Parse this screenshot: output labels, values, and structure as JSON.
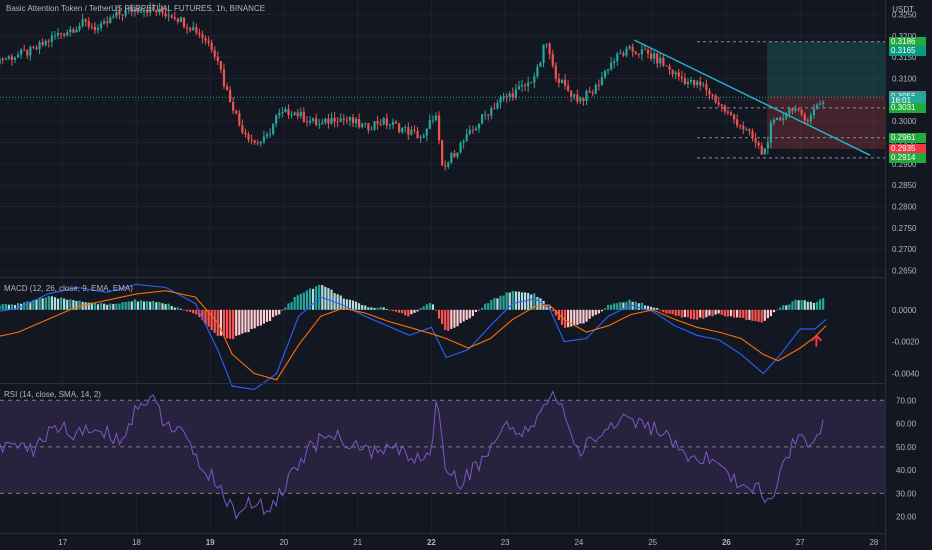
{
  "header": {
    "title": "Basic Attention Token / TetherUS PERPETUAL FUTURES, 1h, BINANCE",
    "currency": "USDT"
  },
  "colors": {
    "background": "#131722",
    "up": "#26a69a",
    "down": "#ef5350",
    "trendline": "#22b5d0",
    "macd_line": "#2962ff",
    "signal_line": "#ff6d00",
    "rsi_line": "#7e57c2",
    "rsi_band": "#2a2340",
    "grid": "#1e222d"
  },
  "price_tags": [
    {
      "label": "0.3186",
      "value": 0.3186,
      "color": "#22ab3b"
    },
    {
      "label": "0.3165",
      "value": 0.3165,
      "color": "#089981"
    },
    {
      "label": "0.3059",
      "value": 0.3059,
      "color": "#787b86"
    },
    {
      "label": "0.3056",
      "value": 0.3056,
      "color": "#26a69a"
    },
    {
      "label": "16:01",
      "value": 0.3047,
      "color": "#26a69a"
    },
    {
      "label": "0.3031",
      "value": 0.3031,
      "color": "#22ab3b"
    },
    {
      "label": "0.2961",
      "value": 0.2961,
      "color": "#22ab3b"
    },
    {
      "label": "0.2935",
      "value": 0.2935,
      "color": "#f23645"
    },
    {
      "label": "0.2914",
      "value": 0.2914,
      "color": "#22ab3b"
    }
  ],
  "chart_data": [
    {
      "type": "candlestick",
      "title": "Basic Attention Token / TetherUS PERPETUAL FUTURES, 1h, BINANCE",
      "y_ticks": [
        "0.3250",
        "0.3200",
        "0.3150",
        "0.3100",
        "0.3050",
        "0.3000",
        "0.2950",
        "0.2900",
        "0.2850",
        "0.2800",
        "0.2750",
        "0.2700",
        "0.2650"
      ],
      "ylim": [
        0.2635,
        0.3265
      ],
      "x_ticks": [
        "17",
        "18",
        "19",
        "20",
        "21",
        "22",
        "23",
        "24",
        "25",
        "26",
        "27",
        "28"
      ],
      "xlim": [
        16.15,
        28.15
      ],
      "close_path": [
        [
          16.0,
          0.314
        ],
        [
          16.3,
          0.315
        ],
        [
          16.6,
          0.3165
        ],
        [
          16.9,
          0.32
        ],
        [
          17.1,
          0.3215
        ],
        [
          17.3,
          0.323
        ],
        [
          17.5,
          0.3215
        ],
        [
          17.7,
          0.3245
        ],
        [
          17.9,
          0.326
        ],
        [
          18.1,
          0.3265
        ],
        [
          18.3,
          0.3255
        ],
        [
          18.5,
          0.325
        ],
        [
          18.65,
          0.323
        ],
        [
          18.8,
          0.3215
        ],
        [
          19.0,
          0.318
        ],
        [
          19.1,
          0.315
        ],
        [
          19.2,
          0.308
        ],
        [
          19.3,
          0.304
        ],
        [
          19.4,
          0.299
        ],
        [
          19.6,
          0.295
        ],
        [
          19.75,
          0.2955
        ],
        [
          19.9,
          0.301
        ],
        [
          20.1,
          0.3025
        ],
        [
          20.3,
          0.3005
        ],
        [
          20.5,
          0.299
        ],
        [
          20.7,
          0.301
        ],
        [
          20.9,
          0.3
        ],
        [
          21.1,
          0.2985
        ],
        [
          21.3,
          0.3
        ],
        [
          21.5,
          0.299
        ],
        [
          21.7,
          0.2975
        ],
        [
          21.9,
          0.296
        ],
        [
          22.05,
          0.3025
        ],
        [
          22.15,
          0.288
        ],
        [
          22.3,
          0.2925
        ],
        [
          22.5,
          0.2965
        ],
        [
          22.7,
          0.301
        ],
        [
          22.9,
          0.3045
        ],
        [
          23.1,
          0.3065
        ],
        [
          23.3,
          0.3085
        ],
        [
          23.45,
          0.312
        ],
        [
          23.55,
          0.319
        ],
        [
          23.65,
          0.312
        ],
        [
          23.8,
          0.308
        ],
        [
          24.0,
          0.305
        ],
        [
          24.2,
          0.307
        ],
        [
          24.4,
          0.313
        ],
        [
          24.55,
          0.3155
        ],
        [
          24.7,
          0.3165
        ],
        [
          24.9,
          0.316
        ],
        [
          25.1,
          0.314
        ],
        [
          25.3,
          0.311
        ],
        [
          25.5,
          0.309
        ],
        [
          25.7,
          0.308
        ],
        [
          25.85,
          0.305
        ],
        [
          26.0,
          0.302
        ],
        [
          26.2,
          0.299
        ],
        [
          26.35,
          0.296
        ],
        [
          26.5,
          0.292
        ],
        [
          26.6,
          0.2985
        ],
        [
          26.75,
          0.301
        ],
        [
          26.9,
          0.3035
        ],
        [
          27.05,
          0.3
        ],
        [
          27.15,
          0.302
        ],
        [
          27.25,
          0.304
        ],
        [
          27.35,
          0.3056
        ]
      ],
      "trendline": [
        [
          24.75,
          0.319
        ],
        [
          27.95,
          0.292
        ]
      ],
      "position": {
        "entry": 0.3059,
        "target": 0.3186,
        "stop": 0.2935,
        "x_start": 26.55,
        "x_end": 28.15
      },
      "dashed_levels": [
        0.3186,
        0.3031,
        0.2961,
        0.2914
      ]
    },
    {
      "type": "bar",
      "title": "MACD (12, 26, close, 9, EMA, EMA)",
      "y_ticks": [
        "0.0000",
        "-0.0020",
        "-0.0040"
      ],
      "ylim": [
        -0.0046,
        0.002
      ],
      "histogram_path": [
        [
          16.0,
          0.0002
        ],
        [
          16.4,
          0.0004
        ],
        [
          16.8,
          0.0008
        ],
        [
          17.2,
          0.0006
        ],
        [
          17.6,
          0.0003
        ],
        [
          18.0,
          0.0006
        ],
        [
          18.4,
          0.0004
        ],
        [
          18.8,
          -0.0003
        ],
        [
          19.1,
          -0.0016
        ],
        [
          19.3,
          -0.0018
        ],
        [
          19.6,
          -0.0012
        ],
        [
          19.9,
          -0.0004
        ],
        [
          20.2,
          0.001
        ],
        [
          20.5,
          0.0016
        ],
        [
          20.8,
          0.0008
        ],
        [
          21.1,
          0.0002
        ],
        [
          21.4,
          0.0001
        ],
        [
          21.7,
          -0.0004
        ],
        [
          22.0,
          0.0005
        ],
        [
          22.2,
          -0.0014
        ],
        [
          22.5,
          -0.0006
        ],
        [
          22.8,
          0.0006
        ],
        [
          23.1,
          0.0012
        ],
        [
          23.4,
          0.001
        ],
        [
          23.6,
          0.0002
        ],
        [
          23.8,
          -0.0012
        ],
        [
          24.1,
          -0.0008
        ],
        [
          24.4,
          0.0003
        ],
        [
          24.7,
          0.0006
        ],
        [
          25.0,
          0.0002
        ],
        [
          25.3,
          -0.0004
        ],
        [
          25.6,
          -0.0006
        ],
        [
          25.9,
          -0.0003
        ],
        [
          26.2,
          -0.0005
        ],
        [
          26.5,
          -0.0008
        ],
        [
          26.7,
          0.0001
        ],
        [
          27.0,
          0.0007
        ],
        [
          27.2,
          0.0004
        ],
        [
          27.35,
          0.0009
        ]
      ],
      "macd_path": [
        [
          16.0,
          -0.0002
        ],
        [
          16.4,
          0.0001
        ],
        [
          16.8,
          0.001
        ],
        [
          17.2,
          0.0014
        ],
        [
          17.6,
          0.0011
        ],
        [
          18.0,
          0.0016
        ],
        [
          18.4,
          0.0014
        ],
        [
          18.8,
          0.0004
        ],
        [
          19.1,
          -0.0025
        ],
        [
          19.3,
          -0.0048
        ],
        [
          19.6,
          -0.005
        ],
        [
          19.9,
          -0.004
        ],
        [
          20.2,
          -0.0004
        ],
        [
          20.5,
          0.0008
        ],
        [
          20.8,
          0.0003
        ],
        [
          21.1,
          -0.0004
        ],
        [
          21.4,
          -0.001
        ],
        [
          21.7,
          -0.0016
        ],
        [
          22.0,
          -0.0011
        ],
        [
          22.2,
          -0.003
        ],
        [
          22.5,
          -0.0025
        ],
        [
          22.8,
          -0.001
        ],
        [
          23.1,
          0.0004
        ],
        [
          23.4,
          0.0007
        ],
        [
          23.6,
          0.0001
        ],
        [
          23.8,
          -0.002
        ],
        [
          24.1,
          -0.0018
        ],
        [
          24.4,
          -0.0004
        ],
        [
          24.7,
          0.0003
        ],
        [
          25.0,
          -0.0001
        ],
        [
          25.3,
          -0.001
        ],
        [
          25.6,
          -0.0016
        ],
        [
          25.9,
          -0.0019
        ],
        [
          26.2,
          -0.0028
        ],
        [
          26.5,
          -0.004
        ],
        [
          26.7,
          -0.003
        ],
        [
          27.0,
          -0.0012
        ],
        [
          27.2,
          -0.0012
        ],
        [
          27.35,
          -0.0006
        ]
      ],
      "signal_path": [
        [
          16.0,
          -0.0018
        ],
        [
          16.4,
          -0.0014
        ],
        [
          16.8,
          -0.0006
        ],
        [
          17.2,
          0.0002
        ],
        [
          17.6,
          0.0006
        ],
        [
          18.0,
          0.001
        ],
        [
          18.4,
          0.0012
        ],
        [
          18.8,
          0.0008
        ],
        [
          19.1,
          -0.0008
        ],
        [
          19.3,
          -0.0028
        ],
        [
          19.6,
          -0.004
        ],
        [
          19.9,
          -0.0044
        ],
        [
          20.2,
          -0.0022
        ],
        [
          20.5,
          -0.0004
        ],
        [
          20.8,
          0.0001
        ],
        [
          21.1,
          -0.0002
        ],
        [
          21.4,
          -0.0007
        ],
        [
          21.7,
          -0.0011
        ],
        [
          22.0,
          -0.0015
        ],
        [
          22.2,
          -0.0018
        ],
        [
          22.5,
          -0.0024
        ],
        [
          22.8,
          -0.0018
        ],
        [
          23.1,
          -0.0006
        ],
        [
          23.4,
          0.0002
        ],
        [
          23.6,
          0.0003
        ],
        [
          23.8,
          -0.0006
        ],
        [
          24.1,
          -0.0014
        ],
        [
          24.4,
          -0.001
        ],
        [
          24.7,
          -0.0003
        ],
        [
          25.0,
          0.0
        ],
        [
          25.3,
          -0.0006
        ],
        [
          25.6,
          -0.0011
        ],
        [
          25.9,
          -0.0014
        ],
        [
          26.2,
          -0.0018
        ],
        [
          26.5,
          -0.0028
        ],
        [
          26.7,
          -0.0032
        ],
        [
          27.0,
          -0.0024
        ],
        [
          27.2,
          -0.0017
        ],
        [
          27.35,
          -0.001
        ]
      ],
      "arrow_marker": {
        "x": 27.22,
        "y": -0.002
      }
    },
    {
      "type": "line",
      "title": "RSI (14, close, SMA, 14, 2)",
      "y_ticks": [
        "70.00",
        "60.00",
        "50.00",
        "40.00",
        "30.00",
        "20.00"
      ],
      "ylim": [
        13,
        77
      ],
      "band": [
        30,
        70
      ],
      "midline": 50,
      "rsi_path": [
        [
          16.0,
          45
        ],
        [
          16.3,
          52
        ],
        [
          16.6,
          48
        ],
        [
          16.9,
          60
        ],
        [
          17.2,
          55
        ],
        [
          17.5,
          58
        ],
        [
          17.8,
          52
        ],
        [
          18.0,
          68
        ],
        [
          18.2,
          71
        ],
        [
          18.4,
          60
        ],
        [
          18.6,
          56
        ],
        [
          18.8,
          45
        ],
        [
          19.0,
          38
        ],
        [
          19.2,
          28
        ],
        [
          19.35,
          22
        ],
        [
          19.5,
          25
        ],
        [
          19.8,
          24
        ],
        [
          20.0,
          32
        ],
        [
          20.3,
          48
        ],
        [
          20.6,
          55
        ],
        [
          20.9,
          52
        ],
        [
          21.2,
          47
        ],
        [
          21.5,
          50
        ],
        [
          21.8,
          44
        ],
        [
          22.0,
          49
        ],
        [
          22.08,
          72
        ],
        [
          22.2,
          40
        ],
        [
          22.4,
          35
        ],
        [
          22.7,
          45
        ],
        [
          23.0,
          58
        ],
        [
          23.3,
          55
        ],
        [
          23.5,
          68
        ],
        [
          23.7,
          73
        ],
        [
          23.85,
          58
        ],
        [
          24.0,
          48
        ],
        [
          24.3,
          56
        ],
        [
          24.6,
          63
        ],
        [
          24.9,
          60
        ],
        [
          25.2,
          54
        ],
        [
          25.5,
          42
        ],
        [
          25.8,
          46
        ],
        [
          26.0,
          38
        ],
        [
          26.2,
          34
        ],
        [
          26.45,
          32
        ],
        [
          26.6,
          24
        ],
        [
          26.8,
          44
        ],
        [
          27.0,
          58
        ],
        [
          27.15,
          51
        ],
        [
          27.3,
          60
        ],
        [
          27.35,
          61
        ]
      ],
      "rsi_ma_path": [
        [
          16.0,
          50
        ],
        [
          16.5,
          52
        ],
        [
          17.0,
          55
        ],
        [
          17.5,
          57
        ],
        [
          18.0,
          61
        ],
        [
          18.5,
          60
        ],
        [
          19.0,
          50
        ],
        [
          19.5,
          36
        ],
        [
          20.0,
          30
        ],
        [
          20.5,
          45
        ],
        [
          21.0,
          51
        ],
        [
          21.5,
          49
        ],
        [
          22.0,
          48
        ],
        [
          22.5,
          46
        ],
        [
          23.0,
          50
        ],
        [
          23.5,
          60
        ],
        [
          24.0,
          58
        ],
        [
          24.5,
          56
        ],
        [
          25.0,
          57
        ],
        [
          25.5,
          48
        ],
        [
          26.0,
          42
        ],
        [
          26.5,
          36
        ],
        [
          27.0,
          47
        ],
        [
          27.35,
          56
        ]
      ]
    }
  ]
}
